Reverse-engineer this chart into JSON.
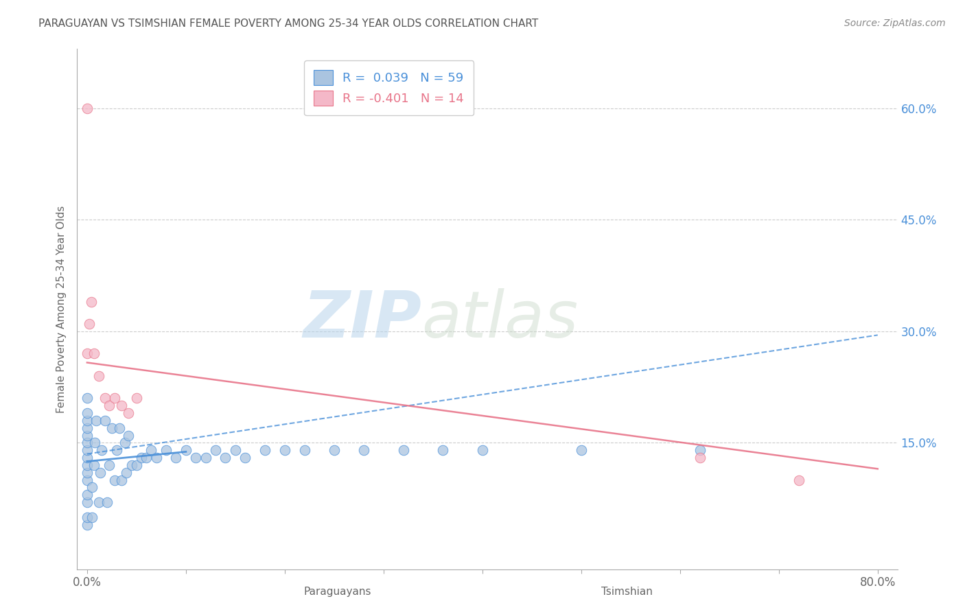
{
  "title": "PARAGUAYAN VS TSIMSHIAN FEMALE POVERTY AMONG 25-34 YEAR OLDS CORRELATION CHART",
  "source": "Source: ZipAtlas.com",
  "ylabel": "Female Poverty Among 25-34 Year Olds",
  "xlim": [
    -0.01,
    0.82
  ],
  "ylim": [
    -0.02,
    0.68
  ],
  "x_ticks": [
    0.0,
    0.1,
    0.2,
    0.3,
    0.4,
    0.5,
    0.6,
    0.7,
    0.8
  ],
  "x_tick_labels_show": [
    "0.0%",
    "",
    "",
    "",
    "",
    "",
    "",
    "",
    "80.0%"
  ],
  "y_ticks": [
    0.15,
    0.3,
    0.45,
    0.6
  ],
  "y_tick_labels": [
    "15.0%",
    "30.0%",
    "45.0%",
    "60.0%"
  ],
  "grid_color": "#cccccc",
  "background_color": "#ffffff",
  "paraguayan_color": "#aac4e0",
  "tsimshian_color": "#f4b8c8",
  "paraguayan_line_color": "#4a90d9",
  "tsimshian_line_color": "#e8758a",
  "legend_blue_label": "R =  0.039   N = 59",
  "legend_pink_label": "R = -0.401   N = 14",
  "watermark_zip": "ZIP",
  "watermark_atlas": "atlas",
  "par_trend_x": [
    0.0,
    0.8
  ],
  "par_trend_y": [
    0.135,
    0.295
  ],
  "tsi_trend_x": [
    0.0,
    0.8
  ],
  "tsi_trend_y": [
    0.258,
    0.115
  ],
  "par_short_line_x": [
    0.0,
    0.1
  ],
  "par_short_line_y": [
    0.125,
    0.138
  ],
  "paraguayan_x": [
    0.0,
    0.0,
    0.0,
    0.0,
    0.0,
    0.0,
    0.0,
    0.0,
    0.0,
    0.0,
    0.0,
    0.0,
    0.0,
    0.0,
    0.0,
    0.005,
    0.005,
    0.007,
    0.008,
    0.009,
    0.012,
    0.013,
    0.015,
    0.018,
    0.02,
    0.022,
    0.025,
    0.028,
    0.03,
    0.033,
    0.035,
    0.038,
    0.04,
    0.042,
    0.045,
    0.05,
    0.055,
    0.06,
    0.065,
    0.07,
    0.08,
    0.09,
    0.1,
    0.11,
    0.12,
    0.13,
    0.14,
    0.15,
    0.16,
    0.18,
    0.2,
    0.22,
    0.25,
    0.28,
    0.32,
    0.36,
    0.4,
    0.5,
    0.62
  ],
  "paraguayan_y": [
    0.04,
    0.05,
    0.07,
    0.08,
    0.1,
    0.11,
    0.12,
    0.13,
    0.14,
    0.15,
    0.16,
    0.17,
    0.18,
    0.19,
    0.21,
    0.05,
    0.09,
    0.12,
    0.15,
    0.18,
    0.07,
    0.11,
    0.14,
    0.18,
    0.07,
    0.12,
    0.17,
    0.1,
    0.14,
    0.17,
    0.1,
    0.15,
    0.11,
    0.16,
    0.12,
    0.12,
    0.13,
    0.13,
    0.14,
    0.13,
    0.14,
    0.13,
    0.14,
    0.13,
    0.13,
    0.14,
    0.13,
    0.14,
    0.13,
    0.14,
    0.14,
    0.14,
    0.14,
    0.14,
    0.14,
    0.14,
    0.14,
    0.14,
    0.14
  ],
  "tsimshian_x": [
    0.0,
    0.0,
    0.002,
    0.004,
    0.007,
    0.012,
    0.018,
    0.022,
    0.028,
    0.035,
    0.042,
    0.05,
    0.62,
    0.72
  ],
  "tsimshian_y": [
    0.6,
    0.27,
    0.31,
    0.34,
    0.27,
    0.24,
    0.21,
    0.2,
    0.21,
    0.2,
    0.19,
    0.21,
    0.13,
    0.1
  ]
}
